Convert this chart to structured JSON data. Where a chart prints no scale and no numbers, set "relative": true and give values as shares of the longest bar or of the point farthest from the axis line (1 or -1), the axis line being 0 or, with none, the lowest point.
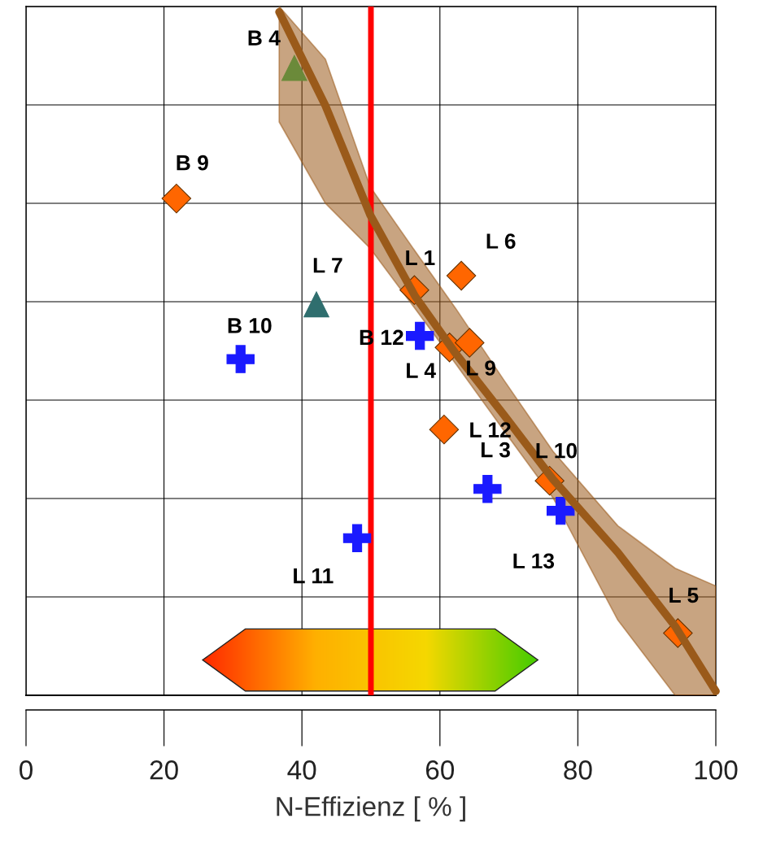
{
  "chart_data": {
    "type": "scatter",
    "xlabel": "N-Effizienz [ % ]",
    "relative": true,
    "xlim": [
      0,
      100
    ],
    "xticks": [
      0,
      20,
      40,
      60,
      80,
      100
    ],
    "grid": true,
    "tick_labels": "x",
    "ref_lines": [
      {
        "axis": "x",
        "value": 50,
        "color": "#ff0000"
      }
    ],
    "series": [
      {
        "type": "line",
        "color": "#9a5a1a",
        "marker": "none",
        "x": [
          36.7,
          43.4,
          49.9,
          56.4,
          62.3,
          69.3,
          76.4,
          85.8,
          94.1,
          100.0
        ],
        "values": [
          1.0,
          0.863,
          0.703,
          0.584,
          0.5,
          0.41,
          0.316,
          0.209,
          0.101,
          0.006
        ],
        "lower": [
          0.839,
          0.72,
          0.654,
          0.566,
          0.485,
          0.387,
          0.289,
          0.11,
          0.0,
          0.0
        ],
        "upper": [
          1.008,
          0.931,
          0.744,
          0.65,
          0.566,
          0.461,
          0.357,
          0.248,
          0.186,
          0.16
        ]
      },
      {
        "name": "B 4",
        "color": "#6b8a3a",
        "marker": "triangle",
        "x": [
          38.9
        ],
        "values": [
          0.918
        ]
      },
      {
        "name": "B 9",
        "color": "#ff6600",
        "marker": "diamond",
        "x": [
          21.8
        ],
        "values": [
          0.727
        ]
      },
      {
        "name": "L 7",
        "color": "#2f6e6e",
        "marker": "triangle",
        "x": [
          42.1
        ],
        "values": [
          0.572
        ]
      },
      {
        "name": "B 10",
        "color": "#1a1aff",
        "marker": "cross",
        "x": [
          31.1
        ],
        "values": [
          0.492
        ]
      },
      {
        "name": "L 1",
        "color": "#ff6600",
        "marker": "diamond",
        "x": [
          56.3
        ],
        "values": [
          0.593
        ]
      },
      {
        "name": "L 6",
        "color": "#ff6600",
        "marker": "diamond",
        "x": [
          63.1
        ],
        "values": [
          0.614
        ]
      },
      {
        "name": "B 12",
        "color": "#1a1aff",
        "marker": "cross",
        "x": [
          57.1
        ],
        "values": [
          0.526
        ]
      },
      {
        "name": "L 4",
        "color": "#ff6600",
        "marker": "diamond",
        "x": [
          61.4
        ],
        "values": [
          0.509
        ]
      },
      {
        "name": "L 9",
        "color": "#ff6600",
        "marker": "diamond",
        "x": [
          64.3
        ],
        "values": [
          0.516
        ]
      },
      {
        "name": "L 12",
        "color": "#ff6600",
        "marker": "diamond",
        "x": [
          60.6
        ],
        "values": [
          0.389
        ]
      },
      {
        "name": "L 3",
        "color": "#1a1aff",
        "marker": "cross",
        "x": [
          66.9
        ],
        "values": [
          0.302
        ]
      },
      {
        "name": "L 10",
        "color": "#ff6600",
        "marker": "diamond",
        "x": [
          75.9
        ],
        "values": [
          0.314
        ]
      },
      {
        "name": "L 13",
        "color": "#1a1aff",
        "marker": "cross",
        "x": [
          77.5
        ],
        "values": [
          0.27
        ]
      },
      {
        "name": "L 11",
        "color": "#1a1aff",
        "marker": "cross",
        "x": [
          48.0
        ],
        "values": [
          0.23
        ]
      },
      {
        "name": "L 5",
        "color": "#ff6600",
        "marker": "diamond",
        "x": [
          94.5
        ],
        "values": [
          0.091
        ]
      }
    ]
  }
}
